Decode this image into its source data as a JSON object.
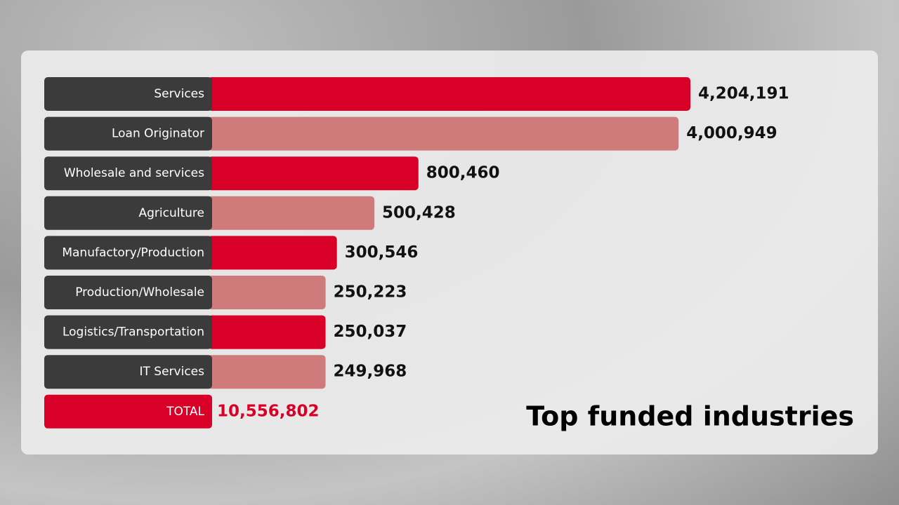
{
  "chart_data": {
    "type": "bar",
    "title": "Top funded industries",
    "categories": [
      "Services",
      "Loan Originator",
      "Wholesale and services",
      "Agriculture",
      "Manufactory/Production",
      "Production/Wholesale",
      "Logistics/Transportation",
      "IT Services"
    ],
    "values": [
      4204191,
      4000949,
      800460,
      500428,
      300546,
      250223,
      250037,
      249968
    ],
    "value_labels": [
      "4,204,191",
      "4,000,949",
      "800,460",
      "500,428",
      "300,546",
      "250,223",
      "250,037",
      "249,968"
    ],
    "colors": [
      "#d90028",
      "#d07b7b",
      "#d90028",
      "#d07b7b",
      "#d90028",
      "#d07b7b",
      "#d90028",
      "#d07b7b"
    ],
    "total": {
      "label": "TOTAL",
      "value": 10556802,
      "value_label": "10,556,802",
      "color": "#d90028"
    }
  }
}
